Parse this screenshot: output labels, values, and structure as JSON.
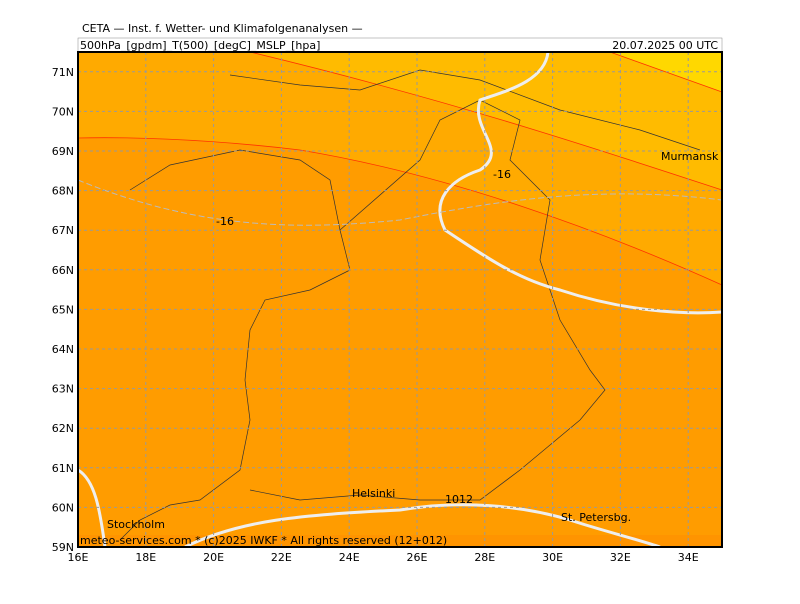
{
  "header": {
    "title": "CETA — Inst. f. Wetter- und Klimafolgenanalysen —",
    "parameters": "500hPa_[gpdm]_T(500)_[degC]_MSLP_[hpa]",
    "valid_time": "20.07.2025 00 UTC"
  },
  "map": {
    "lat_labels": [
      "59N",
      "60N",
      "61N",
      "62N",
      "63N",
      "64N",
      "65N",
      "66N",
      "67N",
      "68N",
      "69N",
      "70N",
      "71N"
    ],
    "lon_labels": [
      "16E",
      "18E",
      "20E",
      "22E",
      "24E",
      "26E",
      "28E",
      "30E",
      "32E",
      "34E"
    ],
    "cities": [
      "Murmansk",
      "Helsinki",
      "Stockholm",
      "St. Petersbg."
    ],
    "contour_labels": [
      "-16",
      "-16",
      "1012"
    ]
  },
  "footer": {
    "credit": "meteo-services.com * (c)2025 IWKF * All rights reserved (12+012)"
  }
}
